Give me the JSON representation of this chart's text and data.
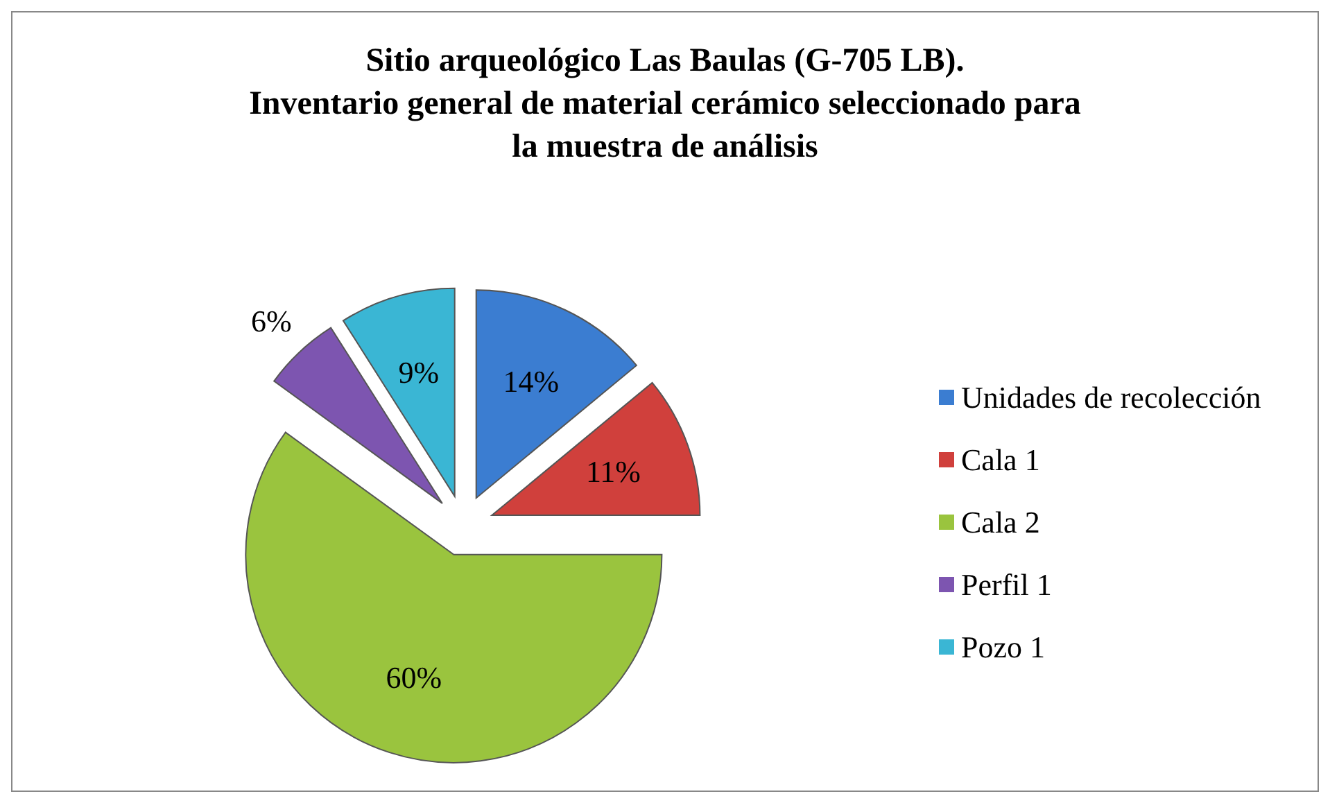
{
  "chart_data": {
    "type": "pie",
    "title": "Sitio arqueológico Las Baulas  (G-705 LB).\nInventario general de material cerámico  seleccionado para\nla muestra de análisis",
    "categories": [
      "Unidades de recolección",
      "Cala 1",
      "Cala 2",
      "Perfil 1",
      "Pozo 1"
    ],
    "values": [
      14,
      11,
      60,
      6,
      9
    ],
    "value_labels": [
      "14%",
      "11%",
      "60%",
      "6%",
      "9%"
    ],
    "colors": [
      "#3b7dd1",
      "#d0403c",
      "#9ac43e",
      "#7d55b0",
      "#3ab6d4"
    ],
    "legend": "right"
  }
}
